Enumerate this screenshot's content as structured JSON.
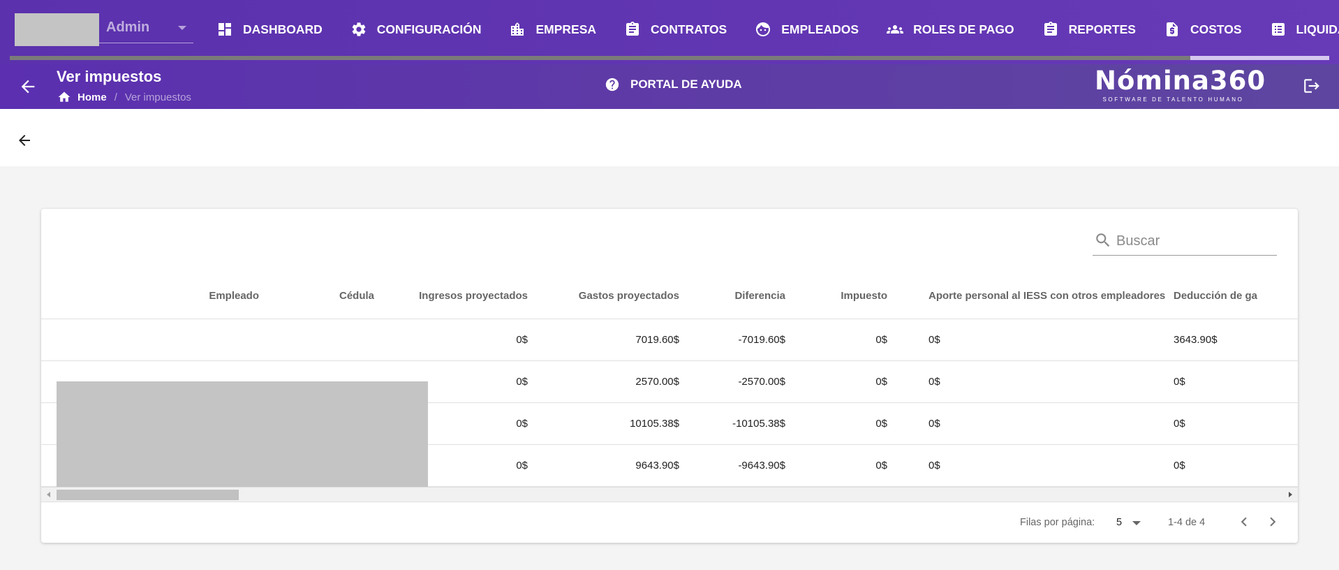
{
  "user": {
    "name": "Admin"
  },
  "nav": {
    "items": [
      {
        "label": "DASHBOARD",
        "icon": "dashboard-icon"
      },
      {
        "label": "CONFIGURACIÓN",
        "icon": "gear-icon"
      },
      {
        "label": "EMPRESA",
        "icon": "building-icon"
      },
      {
        "label": "CONTRATOS",
        "icon": "clipboard-icon"
      },
      {
        "label": "EMPLEADOS",
        "icon": "face-icon"
      },
      {
        "label": "ROLES DE PAGO",
        "icon": "group-icon"
      },
      {
        "label": "REPORTES",
        "icon": "clipboard-icon"
      },
      {
        "label": "COSTOS",
        "icon": "money-file-icon"
      },
      {
        "label": "LIQUIDACIONES",
        "icon": "list-icon"
      }
    ],
    "active": "LIQUIDACIONES"
  },
  "header": {
    "title": "Ver impuestos",
    "breadcrumb": {
      "home": "Home",
      "separator": "/",
      "current": "Ver impuestos"
    },
    "help_label": "PORTAL DE AYUDA",
    "brand_name": "Nómina360",
    "brand_tagline": "SOFTWARE DE TALENTO HUMANO"
  },
  "search": {
    "placeholder": "Buscar"
  },
  "table": {
    "columns": [
      "Empleado",
      "Cédula",
      "Ingresos proyectados",
      "Gastos proyectados",
      "Diferencia",
      "Impuesto",
      "Aporte personal al IESS con otros empleadores",
      "Deducción de ga"
    ],
    "rows": [
      {
        "ingresos": "0$",
        "gastos": "7019.60$",
        "diferencia": "-7019.60$",
        "impuesto": "0$",
        "aporte": "0$",
        "deduccion": "3643.90$"
      },
      {
        "ingresos": "0$",
        "gastos": "2570.00$",
        "diferencia": "-2570.00$",
        "impuesto": "0$",
        "aporte": "0$",
        "deduccion": "0$"
      },
      {
        "ingresos": "0$",
        "gastos": "10105.38$",
        "diferencia": "-10105.38$",
        "impuesto": "0$",
        "aporte": "0$",
        "deduccion": "0$"
      },
      {
        "ingresos": "0$",
        "gastos": "9643.90$",
        "diferencia": "-9643.90$",
        "impuesto": "0$",
        "aporte": "0$",
        "deduccion": "0$"
      }
    ]
  },
  "pagination": {
    "rows_per_page_label": "Filas por página:",
    "rows_per_page": "5",
    "range": "1-4 de 4"
  },
  "colors": {
    "primary": "#673ab7",
    "subheader": "#5a34aa"
  }
}
